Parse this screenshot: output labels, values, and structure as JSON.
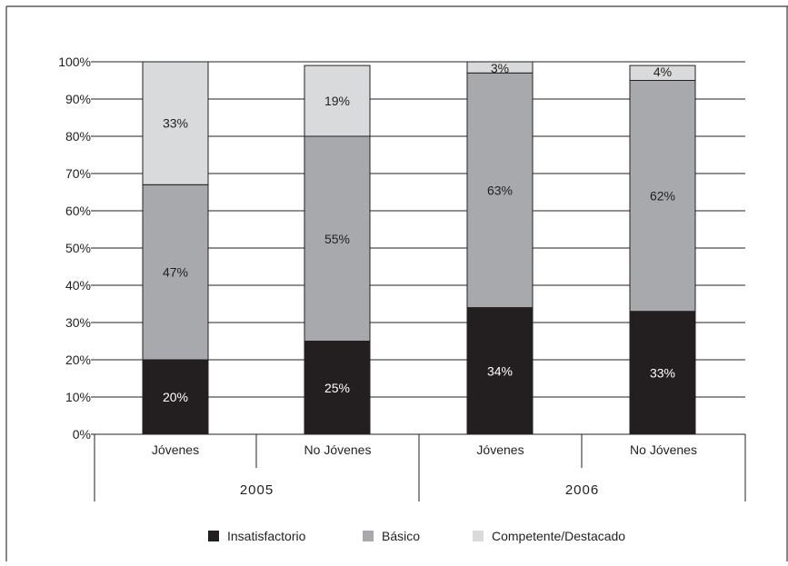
{
  "chart_data": {
    "type": "bar",
    "stacked": true,
    "groups": [
      "2005",
      "2006"
    ],
    "categories": [
      "Jóvenes",
      "No Jóvenes",
      "Jóvenes",
      "No Jóvenes"
    ],
    "category_group": [
      "2005",
      "2005",
      "2006",
      "2006"
    ],
    "series": [
      {
        "name": "Insatisfactorio",
        "values": [
          20,
          25,
          34,
          33
        ],
        "labels": [
          "20%",
          "25%",
          "34%",
          "33%"
        ],
        "color": "#231f20",
        "label_color": "#ffffff"
      },
      {
        "name": "Básico",
        "values": [
          47,
          55,
          63,
          62
        ],
        "labels": [
          "47%",
          "55%",
          "63%",
          "62%"
        ],
        "color": "#a7a9ac",
        "label_color": "#231f20"
      },
      {
        "name": "Competente/Destacado",
        "values": [
          33,
          19,
          3,
          4
        ],
        "labels": [
          "33%",
          "19%",
          "3%",
          "4%"
        ],
        "color": "#d9dadb",
        "label_color": "#231f20"
      }
    ],
    "ylim": [
      0,
      100
    ],
    "yticks": [
      "0%",
      "10%",
      "20%",
      "30%",
      "40%",
      "50%",
      "60%",
      "70%",
      "80%",
      "90%",
      "100%"
    ],
    "grid": true,
    "legend_position": "bottom",
    "title": "",
    "xlabel": "",
    "ylabel": ""
  }
}
